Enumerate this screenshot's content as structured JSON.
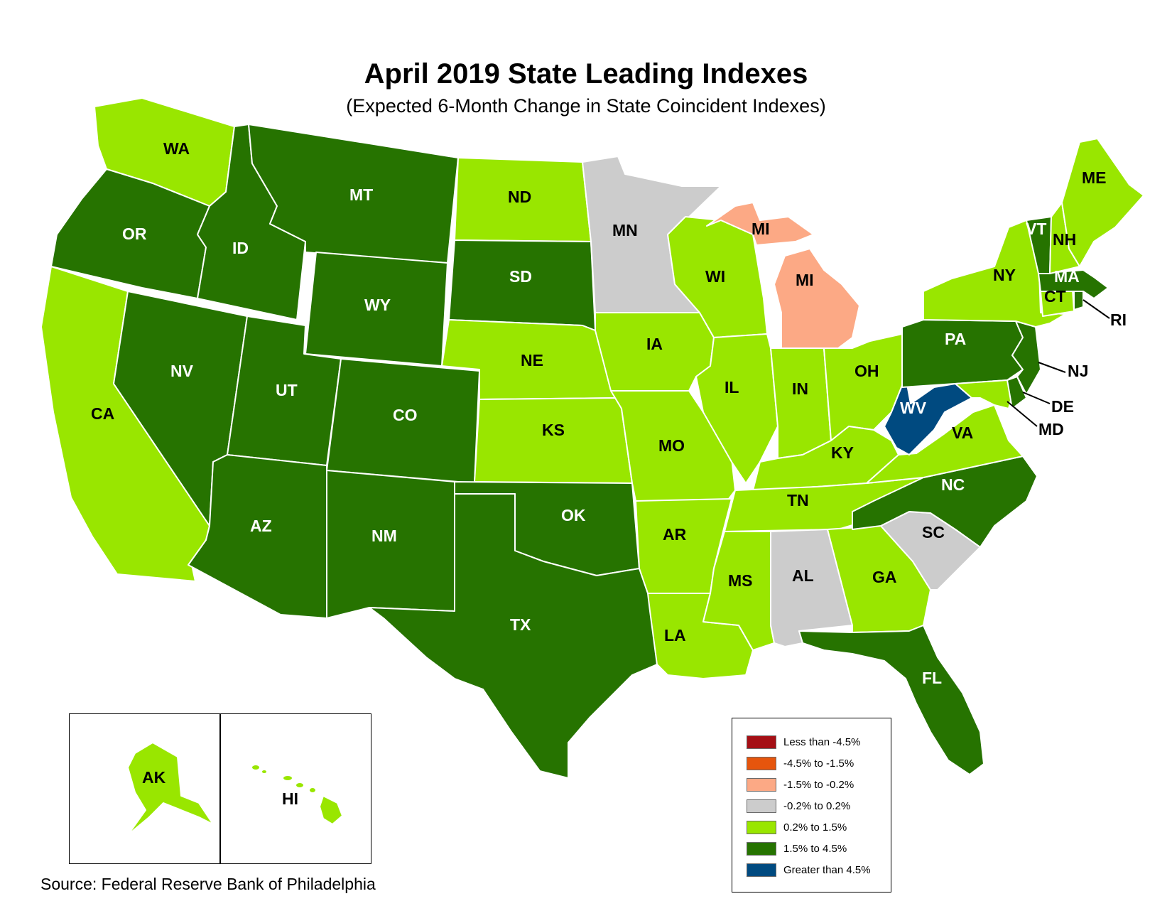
{
  "title": "April 2019 State Leading Indexes",
  "subtitle": "(Expected 6-Month Change in State Coincident Indexes)",
  "source": "Source: Federal Reserve Bank of Philadelphia",
  "legend": [
    {
      "label": "Less than -4.5%",
      "color": "#a50f15"
    },
    {
      "label": "-4.5% to -1.5%",
      "color": "#e6550d"
    },
    {
      "label": "-1.5% to -0.2%",
      "color": "#fca985"
    },
    {
      "label": "-0.2% to 0.2%",
      "color": "#cccccc"
    },
    {
      "label": "0.2% to 1.5%",
      "color": "#99e600"
    },
    {
      "label": "1.5% to 4.5%",
      "color": "#267300"
    },
    {
      "label": "Greater than 4.5%",
      "color": "#004a80"
    }
  ],
  "states": {
    "WA": {
      "label": "WA",
      "category": "0.2% to 1.5%"
    },
    "OR": {
      "label": "OR",
      "category": "1.5% to 4.5%"
    },
    "CA": {
      "label": "CA",
      "category": "0.2% to 1.5%"
    },
    "ID": {
      "label": "ID",
      "category": "1.5% to 4.5%"
    },
    "NV": {
      "label": "NV",
      "category": "1.5% to 4.5%"
    },
    "MT": {
      "label": "MT",
      "category": "1.5% to 4.5%"
    },
    "WY": {
      "label": "WY",
      "category": "1.5% to 4.5%"
    },
    "UT": {
      "label": "UT",
      "category": "1.5% to 4.5%"
    },
    "AZ": {
      "label": "AZ",
      "category": "1.5% to 4.5%"
    },
    "CO": {
      "label": "CO",
      "category": "1.5% to 4.5%"
    },
    "NM": {
      "label": "NM",
      "category": "1.5% to 4.5%"
    },
    "ND": {
      "label": "ND",
      "category": "0.2% to 1.5%"
    },
    "SD": {
      "label": "SD",
      "category": "1.5% to 4.5%"
    },
    "NE": {
      "label": "NE",
      "category": "0.2% to 1.5%"
    },
    "KS": {
      "label": "KS",
      "category": "0.2% to 1.5%"
    },
    "OK": {
      "label": "OK",
      "category": "1.5% to 4.5%"
    },
    "TX": {
      "label": "TX",
      "category": "1.5% to 4.5%"
    },
    "MN": {
      "label": "MN",
      "category": "-0.2% to 0.2%"
    },
    "IA": {
      "label": "IA",
      "category": "0.2% to 1.5%"
    },
    "MO": {
      "label": "MO",
      "category": "0.2% to 1.5%"
    },
    "AR": {
      "label": "AR",
      "category": "0.2% to 1.5%"
    },
    "LA": {
      "label": "LA",
      "category": "0.2% to 1.5%"
    },
    "WI": {
      "label": "WI",
      "category": "0.2% to 1.5%"
    },
    "IL": {
      "label": "IL",
      "category": "0.2% to 1.5%"
    },
    "MI_UP": {
      "label": "MI",
      "category": "-1.5% to -0.2%"
    },
    "MI": {
      "label": "MI",
      "category": "-1.5% to -0.2%"
    },
    "IN": {
      "label": "IN",
      "category": "0.2% to 1.5%"
    },
    "OH": {
      "label": "OH",
      "category": "0.2% to 1.5%"
    },
    "KY": {
      "label": "KY",
      "category": "0.2% to 1.5%"
    },
    "TN": {
      "label": "TN",
      "category": "0.2% to 1.5%"
    },
    "MS": {
      "label": "MS",
      "category": "0.2% to 1.5%"
    },
    "AL": {
      "label": "AL",
      "category": "-0.2% to 0.2%"
    },
    "GA": {
      "label": "GA",
      "category": "0.2% to 1.5%"
    },
    "FL": {
      "label": "FL",
      "category": "1.5% to 4.5%"
    },
    "SC": {
      "label": "SC",
      "category": "-0.2% to 0.2%"
    },
    "NC": {
      "label": "NC",
      "category": "1.5% to 4.5%"
    },
    "VA": {
      "label": "VA",
      "category": "0.2% to 1.5%"
    },
    "WV": {
      "label": "WV",
      "category": "Greater than 4.5%"
    },
    "PA": {
      "label": "PA",
      "category": "1.5% to 4.5%"
    },
    "NY": {
      "label": "NY",
      "category": "0.2% to 1.5%"
    },
    "VT": {
      "label": "VT",
      "category": "1.5% to 4.5%"
    },
    "NH": {
      "label": "NH",
      "category": "0.2% to 1.5%"
    },
    "ME": {
      "label": "ME",
      "category": "0.2% to 1.5%"
    },
    "MA": {
      "label": "MA",
      "category": "1.5% to 4.5%"
    },
    "CT": {
      "label": "CT",
      "category": "0.2% to 1.5%"
    },
    "RI": {
      "label": "RI",
      "category": "1.5% to 4.5%"
    },
    "NJ": {
      "label": "NJ",
      "category": "1.5% to 4.5%"
    },
    "DE": {
      "label": "DE",
      "category": "1.5% to 4.5%"
    },
    "MD": {
      "label": "MD",
      "category": "0.2% to 1.5%"
    },
    "AK": {
      "label": "AK",
      "category": "0.2% to 1.5%"
    },
    "HI": {
      "label": "HI",
      "category": "0.2% to 1.5%"
    }
  }
}
